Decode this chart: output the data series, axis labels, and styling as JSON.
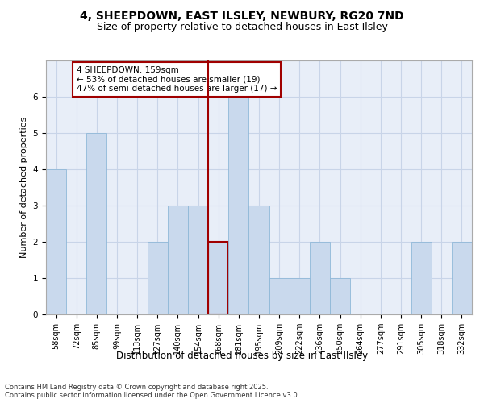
{
  "title1": "4, SHEEPDOWN, EAST ILSLEY, NEWBURY, RG20 7ND",
  "title2": "Size of property relative to detached houses in East Ilsley",
  "xlabel": "Distribution of detached houses by size in East Ilsley",
  "ylabel": "Number of detached properties",
  "footnote": "Contains HM Land Registry data © Crown copyright and database right 2025.\nContains public sector information licensed under the Open Government Licence v3.0.",
  "categories": [
    "58sqm",
    "72sqm",
    "85sqm",
    "99sqm",
    "113sqm",
    "127sqm",
    "140sqm",
    "154sqm",
    "168sqm",
    "181sqm",
    "195sqm",
    "209sqm",
    "222sqm",
    "236sqm",
    "250sqm",
    "264sqm",
    "277sqm",
    "291sqm",
    "305sqm",
    "318sqm",
    "332sqm"
  ],
  "values": [
    4,
    0,
    5,
    0,
    0,
    2,
    3,
    3,
    2,
    6,
    3,
    1,
    1,
    2,
    1,
    0,
    0,
    0,
    2,
    0,
    2
  ],
  "bar_color": "#c9d9ed",
  "bar_edge_color": "#8fb8d8",
  "highlight_bar_index": 8,
  "highlight_edge_color": "#a00000",
  "vline_color": "#a00000",
  "annotation_text": "4 SHEEPDOWN: 159sqm\n← 53% of detached houses are smaller (19)\n47% of semi-detached houses are larger (17) →",
  "annotation_box_color": "#ffffff",
  "annotation_box_edge": "#a00000",
  "ylim": [
    0,
    7
  ],
  "yticks": [
    0,
    1,
    2,
    3,
    4,
    5,
    6
  ],
  "grid_color": "#c8d4e8",
  "background_color": "#e8eef8",
  "title1_fontsize": 10,
  "title2_fontsize": 9,
  "xlabel_fontsize": 8.5,
  "ylabel_fontsize": 8,
  "tick_fontsize": 7,
  "annotation_fontsize": 7.5,
  "footnote_fontsize": 6
}
